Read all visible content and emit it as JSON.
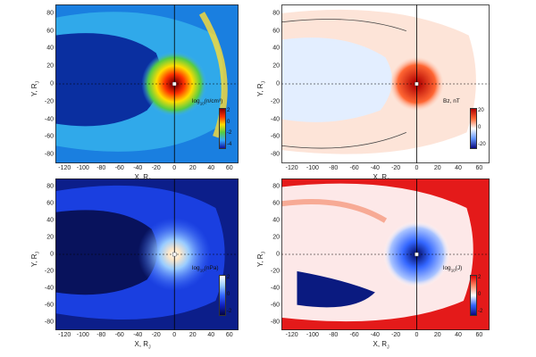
{
  "chart_data": [
    {
      "type": "heatmap",
      "quantity": "density",
      "colorbar_label_base": "log",
      "colorbar_label_sub": "10",
      "colorbar_label_rest": "(n/cm³)",
      "colorbar_ticks": [
        "2",
        "0",
        "-2",
        "-4"
      ],
      "colorbar_colors": [
        "#8b0000",
        "#ff3300",
        "#ffdd00",
        "#55cc44",
        "#33aaff",
        "#1010a0"
      ],
      "xlabel_base": "X, R",
      "xlabel_sub": "J",
      "ylabel_base": "Y, R",
      "ylabel_sub": "J",
      "x_ticks": [
        "-120",
        "-100",
        "-80",
        "-60",
        "-40",
        "-20",
        "0",
        "20",
        "40",
        "60"
      ],
      "y_ticks": [
        "80",
        "60",
        "40",
        "20",
        "0",
        "-20",
        "-40",
        "-60",
        "-80"
      ],
      "xlim": [
        -130,
        70
      ],
      "ylim": [
        -90,
        90
      ]
    },
    {
      "type": "heatmap",
      "quantity": "magnetic field Bz",
      "colorbar_label": "Bz, nT",
      "colorbar_ticks": [
        "20",
        "0",
        "-20"
      ],
      "colorbar_colors": [
        "#b00000",
        "#ff6633",
        "#ffffff",
        "#6699ff",
        "#0a0a80"
      ],
      "xlabel_base": "X, R",
      "xlabel_sub": "J",
      "ylabel_base": "Y, R",
      "ylabel_sub": "J",
      "x_ticks": [
        "-120",
        "-100",
        "-80",
        "-60",
        "-40",
        "-20",
        "0",
        "20",
        "40",
        "60"
      ],
      "y_ticks": [
        "80",
        "60",
        "40",
        "20",
        "0",
        "-20",
        "-40",
        "-60",
        "-80"
      ],
      "xlim": [
        -130,
        70
      ],
      "ylim": [
        -90,
        90
      ]
    },
    {
      "type": "heatmap",
      "quantity": "pressure",
      "colorbar_label_base": "log",
      "colorbar_label_sub": "10",
      "colorbar_label_rest": "(nPa)",
      "colorbar_ticks": [
        "2",
        "0",
        "-2"
      ],
      "colorbar_colors": [
        "#ffffff",
        "#99ccff",
        "#3366ff",
        "#1020c0",
        "#050540"
      ],
      "xlabel_base": "X, R",
      "xlabel_sub": "J",
      "ylabel_base": "Y, R",
      "ylabel_sub": "J",
      "x_ticks": [
        "-120",
        "-100",
        "-80",
        "-60",
        "-40",
        "-20",
        "0",
        "20",
        "40",
        "60"
      ],
      "y_ticks": [
        "80",
        "60",
        "40",
        "20",
        "0",
        "-20",
        "-40",
        "-60",
        "-80"
      ],
      "xlim": [
        -130,
        70
      ],
      "ylim": [
        -90,
        90
      ]
    },
    {
      "type": "heatmap",
      "quantity": "current",
      "colorbar_label_base": "log",
      "colorbar_label_sub": "10",
      "colorbar_label_rest": "(J)",
      "colorbar_ticks": [
        "2",
        "0",
        "-2"
      ],
      "colorbar_colors": [
        "#e00000",
        "#ff8866",
        "#ffffff",
        "#3366ff",
        "#0a0a80"
      ],
      "xlabel_base": "X, R",
      "xlabel_sub": "J",
      "ylabel_base": "Y, R",
      "ylabel_sub": "J",
      "x_ticks": [
        "-120",
        "-100",
        "-80",
        "-60",
        "-40",
        "-20",
        "0",
        "20",
        "40",
        "60"
      ],
      "y_ticks": [
        "80",
        "60",
        "40",
        "20",
        "0",
        "-20",
        "-40",
        "-60",
        "-80"
      ],
      "xlim": [
        -130,
        70
      ],
      "ylim": [
        -90,
        90
      ]
    }
  ]
}
